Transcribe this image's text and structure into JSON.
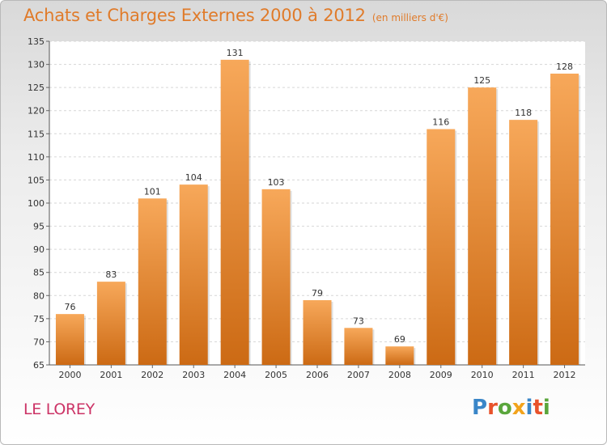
{
  "header": {
    "title": "Achats et Charges Externes 2000 à 2012",
    "subtitle": "(en milliers d'€)"
  },
  "footer": {
    "commune": "LE LOREY",
    "logo_text": "Proxiti"
  },
  "colors": {
    "title": "#e07b2a",
    "bar_top": "#f7a85a",
    "bar_bottom": "#cc6a14",
    "commune": "#cc3366",
    "logo": [
      "#3a86c8",
      "#e8522b",
      "#5aa63c",
      "#f2a31c",
      "#3a86c8",
      "#e8522b",
      "#5aa63c"
    ]
  },
  "chart_data": {
    "type": "bar",
    "categories": [
      "2000",
      "2001",
      "2002",
      "2003",
      "2004",
      "2005",
      "2006",
      "2007",
      "2008",
      "2009",
      "2010",
      "2011",
      "2012"
    ],
    "values": [
      76,
      83,
      101,
      104,
      131,
      103,
      79,
      73,
      69,
      116,
      125,
      118,
      128
    ],
    "ylim": [
      65,
      135
    ],
    "yticks": [
      65,
      70,
      75,
      80,
      85,
      90,
      95,
      100,
      105,
      110,
      115,
      120,
      125,
      130,
      135
    ],
    "grid": true,
    "data_labels": true
  }
}
